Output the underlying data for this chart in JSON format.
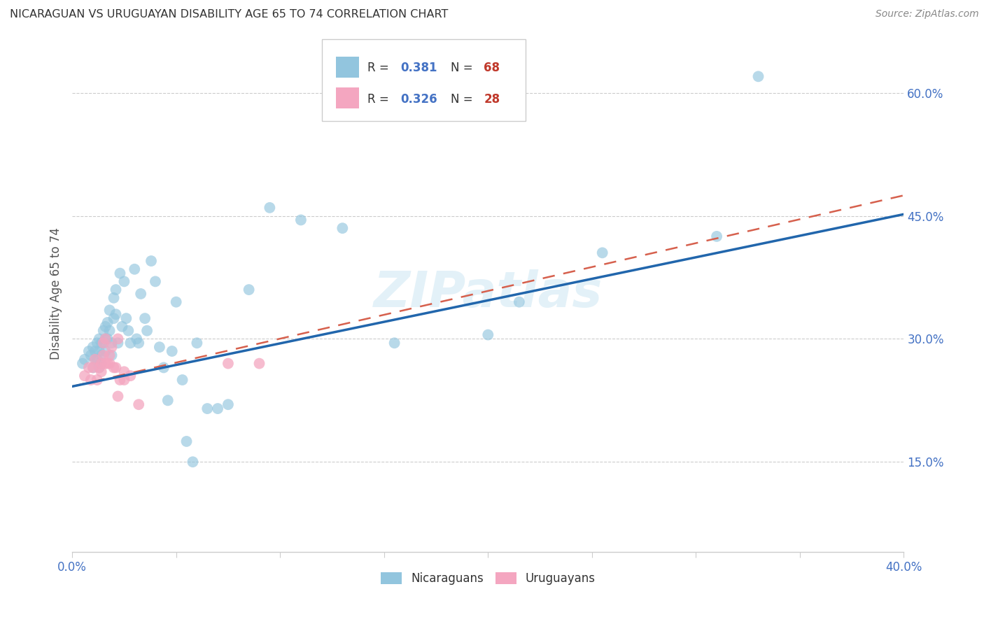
{
  "title": "NICARAGUAN VS URUGUAYAN DISABILITY AGE 65 TO 74 CORRELATION CHART",
  "source": "Source: ZipAtlas.com",
  "ylabel": "Disability Age 65 to 74",
  "ytick_labels": [
    "60.0%",
    "45.0%",
    "30.0%",
    "15.0%"
  ],
  "ytick_values": [
    0.6,
    0.45,
    0.3,
    0.15
  ],
  "xlim": [
    0.0,
    0.4
  ],
  "ylim": [
    0.04,
    0.67
  ],
  "watermark": "ZIPatlas",
  "blue_color": "#92C5DE",
  "pink_color": "#F4A6C0",
  "blue_line_color": "#2166AC",
  "pink_line_color": "#D6604D",
  "blue_trend_x": [
    0.0,
    0.4
  ],
  "blue_trend_y": [
    0.242,
    0.452
  ],
  "pink_trend_x": [
    0.0,
    0.4
  ],
  "pink_trend_y": [
    0.242,
    0.475
  ],
  "nicaraguan_x": [
    0.005,
    0.006,
    0.008,
    0.009,
    0.01,
    0.01,
    0.011,
    0.011,
    0.012,
    0.012,
    0.013,
    0.013,
    0.013,
    0.014,
    0.014,
    0.014,
    0.015,
    0.015,
    0.016,
    0.016,
    0.016,
    0.017,
    0.017,
    0.018,
    0.018,
    0.019,
    0.019,
    0.02,
    0.02,
    0.021,
    0.021,
    0.022,
    0.023,
    0.024,
    0.025,
    0.026,
    0.027,
    0.028,
    0.03,
    0.031,
    0.032,
    0.033,
    0.035,
    0.036,
    0.038,
    0.04,
    0.042,
    0.044,
    0.046,
    0.048,
    0.05,
    0.053,
    0.055,
    0.058,
    0.06,
    0.065,
    0.07,
    0.075,
    0.085,
    0.095,
    0.11,
    0.13,
    0.155,
    0.2,
    0.215,
    0.255,
    0.31,
    0.33
  ],
  "nicaraguan_y": [
    0.27,
    0.275,
    0.285,
    0.28,
    0.29,
    0.265,
    0.285,
    0.275,
    0.295,
    0.275,
    0.3,
    0.285,
    0.265,
    0.295,
    0.28,
    0.27,
    0.31,
    0.295,
    0.315,
    0.3,
    0.285,
    0.32,
    0.3,
    0.335,
    0.31,
    0.295,
    0.28,
    0.35,
    0.325,
    0.36,
    0.33,
    0.295,
    0.38,
    0.315,
    0.37,
    0.325,
    0.31,
    0.295,
    0.385,
    0.3,
    0.295,
    0.355,
    0.325,
    0.31,
    0.395,
    0.37,
    0.29,
    0.265,
    0.225,
    0.285,
    0.345,
    0.25,
    0.175,
    0.15,
    0.295,
    0.215,
    0.215,
    0.22,
    0.36,
    0.46,
    0.445,
    0.435,
    0.295,
    0.305,
    0.345,
    0.405,
    0.425,
    0.62
  ],
  "uruguayan_x": [
    0.006,
    0.008,
    0.009,
    0.01,
    0.011,
    0.012,
    0.013,
    0.014,
    0.014,
    0.015,
    0.015,
    0.016,
    0.016,
    0.017,
    0.018,
    0.018,
    0.019,
    0.02,
    0.021,
    0.022,
    0.022,
    0.023,
    0.025,
    0.025,
    0.028,
    0.032,
    0.075,
    0.09
  ],
  "uruguayan_y": [
    0.255,
    0.265,
    0.25,
    0.265,
    0.275,
    0.25,
    0.265,
    0.26,
    0.27,
    0.295,
    0.28,
    0.27,
    0.3,
    0.27,
    0.28,
    0.27,
    0.29,
    0.265,
    0.265,
    0.23,
    0.3,
    0.25,
    0.26,
    0.25,
    0.255,
    0.22,
    0.27,
    0.27
  ]
}
